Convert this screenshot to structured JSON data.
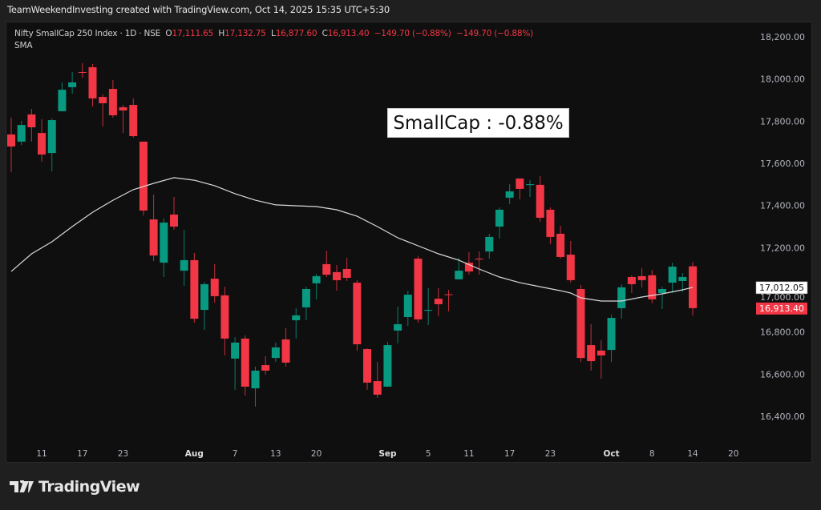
{
  "credit": "TeamWeekendInvesting created with TradingView.com, Oct 14, 2025 15:35 UTC+5:30",
  "legend": {
    "symbol": "Nifty SmallCap 250 Index · 1D · NSE",
    "o_label": "O",
    "o": "17,111.65",
    "h_label": "H",
    "h": "17,132.75",
    "l_label": "L",
    "l": "16,877.60",
    "c_label": "C",
    "c": "16,913.40",
    "change1": "−149.70 (−0.88%)",
    "change2": "−149.70 (−0.88%)",
    "indicator": "SMA"
  },
  "annotation": "SmallCap : -0.88%",
  "logo_text": "TradingView",
  "colors": {
    "up": "#089981",
    "down": "#f23645",
    "sma": "#d9d9d9",
    "bg": "#0f0f0f",
    "axis_text": "#b2b5be"
  },
  "chart_data": {
    "type": "candlestick",
    "title": "Nifty SmallCap 250 Index · 1D · NSE",
    "ylim": [
      16300,
      18280
    ],
    "y_ticks": [
      "18,200.00",
      "18,000.00",
      "17,800.00",
      "17,600.00",
      "17,400.00",
      "17,200.00",
      "17,000.00",
      "16,800.00",
      "16,600.00",
      "16,400.00"
    ],
    "y_tick_values": [
      18200,
      18000,
      17800,
      17600,
      17400,
      17200,
      17000,
      16800,
      16600,
      16400
    ],
    "x_ticks": [
      {
        "label": "11",
        "bar": 3
      },
      {
        "label": "17",
        "bar": 7
      },
      {
        "label": "23",
        "bar": 11
      },
      {
        "label": "Aug",
        "bar": 18,
        "bold": true
      },
      {
        "label": "7",
        "bar": 22
      },
      {
        "label": "13",
        "bar": 26
      },
      {
        "label": "20",
        "bar": 30
      },
      {
        "label": "Sep",
        "bar": 37,
        "bold": true
      },
      {
        "label": "5",
        "bar": 41
      },
      {
        "label": "11",
        "bar": 45
      },
      {
        "label": "17",
        "bar": 49
      },
      {
        "label": "23",
        "bar": 53
      },
      {
        "label": "Oct",
        "bar": 59,
        "bold": true
      },
      {
        "label": "8",
        "bar": 63
      },
      {
        "label": "14",
        "bar": 67
      },
      {
        "label": "20",
        "bar": 71
      }
    ],
    "ohlc": [
      [
        17737,
        17817,
        17558,
        17680
      ],
      [
        17703,
        17801,
        17687,
        17782
      ],
      [
        17832,
        17858,
        17703,
        17771
      ],
      [
        17744,
        17809,
        17608,
        17642
      ],
      [
        17649,
        17813,
        17562,
        17805
      ],
      [
        17847,
        17984,
        17847,
        17949
      ],
      [
        17961,
        18033,
        17930,
        17984
      ],
      [
        18033,
        18075,
        18006,
        18030
      ],
      [
        18056,
        18071,
        17870,
        17908
      ],
      [
        17915,
        17927,
        17775,
        17885
      ],
      [
        17953,
        17995,
        17817,
        17828
      ],
      [
        17866,
        17877,
        17744,
        17851
      ],
      [
        17877,
        17908,
        17722,
        17729
      ],
      [
        17703,
        17703,
        17353,
        17376
      ],
      [
        17334,
        17452,
        17137,
        17163
      ],
      [
        17129,
        17338,
        17061,
        17319
      ],
      [
        17357,
        17441,
        17285,
        17300
      ],
      [
        17091,
        17285,
        17019,
        17141
      ],
      [
        17141,
        17175,
        16844,
        16863
      ],
      [
        16905,
        17038,
        16810,
        17027
      ],
      [
        17053,
        17122,
        16939,
        16970
      ],
      [
        16974,
        17015,
        16689,
        16769
      ],
      [
        16674,
        16776,
        16526,
        16750
      ],
      [
        16769,
        16784,
        16499,
        16541
      ],
      [
        16533,
        16636,
        16446,
        16617
      ],
      [
        16643,
        16685,
        16598,
        16617
      ],
      [
        16677,
        16750,
        16658,
        16727
      ],
      [
        16765,
        16818,
        16636,
        16655
      ],
      [
        16856,
        16913,
        16769,
        16879
      ],
      [
        16917,
        17015,
        16856,
        17004
      ],
      [
        17031,
        17076,
        16955,
        17065
      ],
      [
        17122,
        17186,
        17061,
        17072
      ],
      [
        17084,
        17118,
        16996,
        17046
      ],
      [
        17099,
        17152,
        17042,
        17057
      ],
      [
        17034,
        17046,
        16712,
        16742
      ],
      [
        16719,
        16723,
        16526,
        16560
      ],
      [
        16567,
        16658,
        16488,
        16503
      ],
      [
        16541,
        16753,
        16541,
        16738
      ],
      [
        16807,
        16920,
        16746,
        16837
      ],
      [
        16871,
        16996,
        16829,
        16977
      ],
      [
        17148,
        17160,
        16844,
        16860
      ],
      [
        16901,
        17008,
        16833,
        16905
      ],
      [
        16958,
        17008,
        16875,
        16932
      ],
      [
        16979,
        17000,
        16898,
        16977
      ],
      [
        17050,
        17152,
        17050,
        17091
      ],
      [
        17129,
        17179,
        17072,
        17087
      ],
      [
        17148,
        17182,
        17072,
        17144
      ],
      [
        17182,
        17266,
        17148,
        17251
      ],
      [
        17300,
        17391,
        17243,
        17380
      ],
      [
        17437,
        17501,
        17406,
        17467
      ],
      [
        17528,
        17528,
        17429,
        17479
      ],
      [
        17497,
        17520,
        17441,
        17501
      ],
      [
        17498,
        17539,
        17323,
        17342
      ],
      [
        17380,
        17391,
        17217,
        17251
      ],
      [
        17266,
        17304,
        17148,
        17156
      ],
      [
        17167,
        17232,
        17034,
        17046
      ],
      [
        17004,
        17023,
        16658,
        16677
      ],
      [
        16738,
        16837,
        16617,
        16662
      ],
      [
        16712,
        16761,
        16579,
        16689
      ],
      [
        16715,
        16883,
        16658,
        16867
      ],
      [
        16913,
        17027,
        16863,
        17012
      ],
      [
        17061,
        17069,
        16985,
        17027
      ],
      [
        17065,
        17103,
        17012,
        17046
      ],
      [
        17069,
        17095,
        16936,
        16955
      ],
      [
        16985,
        17015,
        16909,
        17004
      ],
      [
        17034,
        17129,
        16985,
        17110
      ],
      [
        17042,
        17080,
        16989,
        17061
      ],
      [
        17111.65,
        17132.75,
        16877.6,
        16913.4
      ]
    ],
    "sma": [
      [
        0,
        17087
      ],
      [
        2,
        17171
      ],
      [
        4,
        17228
      ],
      [
        6,
        17300
      ],
      [
        8,
        17368
      ],
      [
        10,
        17425
      ],
      [
        12,
        17475
      ],
      [
        14,
        17505
      ],
      [
        16,
        17532
      ],
      [
        18,
        17520
      ],
      [
        20,
        17494
      ],
      [
        22,
        17456
      ],
      [
        24,
        17425
      ],
      [
        26,
        17403
      ],
      [
        28,
        17399
      ],
      [
        30,
        17395
      ],
      [
        32,
        17380
      ],
      [
        34,
        17349
      ],
      [
        36,
        17300
      ],
      [
        38,
        17247
      ],
      [
        40,
        17209
      ],
      [
        42,
        17171
      ],
      [
        44,
        17141
      ],
      [
        46,
        17099
      ],
      [
        48,
        17061
      ],
      [
        50,
        17034
      ],
      [
        52,
        17015
      ],
      [
        54,
        16996
      ],
      [
        55,
        16985
      ],
      [
        56,
        16962
      ],
      [
        58,
        16947
      ],
      [
        60,
        16947
      ],
      [
        62,
        16966
      ],
      [
        64,
        16981
      ],
      [
        66,
        17000
      ],
      [
        67,
        17012
      ]
    ],
    "last_sma_label": "17,012.05",
    "last_price_label": "16,913.40",
    "last_sma_value": 17012.05,
    "last_price_value": 16913.4
  }
}
